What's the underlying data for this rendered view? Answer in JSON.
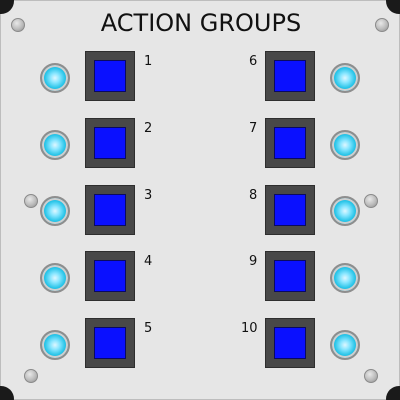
{
  "panel": {
    "title": "ACTION GROUPS",
    "colors": {
      "background": "#e6e6e6",
      "button_face": "#0a10ff",
      "button_frame": "#484848",
      "led": "#27c4e8"
    }
  },
  "groups": [
    {
      "label": "1"
    },
    {
      "label": "2"
    },
    {
      "label": "3"
    },
    {
      "label": "4"
    },
    {
      "label": "5"
    },
    {
      "label": "6"
    },
    {
      "label": "7"
    },
    {
      "label": "8"
    },
    {
      "label": "9"
    },
    {
      "label": "10"
    }
  ]
}
